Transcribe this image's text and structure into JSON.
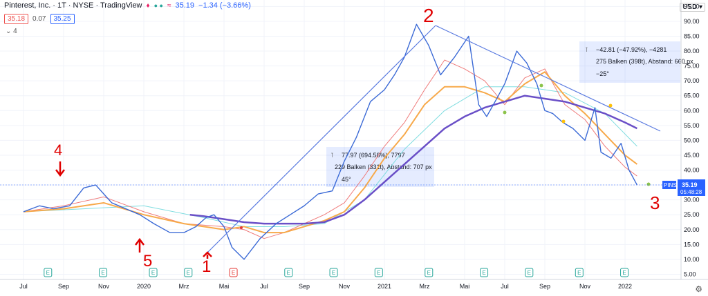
{
  "header": {
    "symbol_line": "Pinterest, Inc. · 1T · NYSE · TradingView",
    "last": "35.19",
    "change": "−1.34 (−3.66%)",
    "bid": "35.18",
    "spread": "0.07",
    "ask": "35.25",
    "indicator_count": "4",
    "currency": "USD"
  },
  "price_label": {
    "ticker": "PINS",
    "value": "35.19",
    "countdown": "05:48:28"
  },
  "measure1": {
    "line1": "77.97 (694.58%), 7797",
    "line2": "229 Balken (331t), Abstand: 707 px",
    "angle": "45°"
  },
  "measure2": {
    "line1": "−42.81 (−47.92%), −4281",
    "line2": "275 Balken (398t), Abstand: 660 px",
    "angle": "−25°"
  },
  "annotations": [
    "4",
    "5",
    "1",
    "2",
    "3"
  ],
  "chart_data": {
    "type": "line",
    "x_ticks": [
      "Jul",
      "Sep",
      "Nov",
      "2020",
      "Mrz",
      "Mai",
      "Jul",
      "Sep",
      "Nov",
      "2021",
      "Mrz",
      "Mai",
      "Jul",
      "Sep",
      "Nov",
      "2022"
    ],
    "y_ticks": [
      5,
      10,
      15,
      20,
      25,
      30,
      35,
      40,
      45,
      50,
      55,
      60,
      65,
      70,
      75,
      80,
      85,
      90,
      95
    ],
    "ylim": [
      3,
      97
    ],
    "xlim": [
      0,
      31
    ],
    "price_x": [
      0,
      0.8,
      1.5,
      2.3,
      3,
      3.6,
      4,
      4.4,
      5.1,
      5.8,
      6.5,
      7.3,
      8,
      8.6,
      9.1,
      9.5,
      10,
      10.4,
      11,
      11.8,
      12.6,
      13.3,
      14,
      14.7,
      15.4,
      16,
      16.6,
      17.3,
      18,
      18.5,
      19,
      19.6,
      20.2,
      20.8,
      21.5,
      22.2,
      22.7,
      23.1,
      23.6,
      24,
      24.6,
      25.1,
      25.6,
      26,
      26.4,
      26.9,
      27.4,
      28,
      28.5,
      28.8,
      29.3,
      29.8,
      30.2,
      30.6
    ],
    "price_y": [
      26,
      28,
      27,
      28,
      34,
      35,
      32,
      29,
      27,
      25,
      22,
      19,
      19,
      21,
      24,
      25,
      21,
      14,
      10,
      17,
      22,
      25,
      28,
      32,
      33,
      43,
      51,
      63,
      67,
      72,
      78,
      89,
      82,
      72,
      78,
      85,
      62,
      58,
      64,
      69,
      80,
      76,
      69,
      60,
      59,
      56,
      54,
      50,
      61,
      46,
      44,
      49,
      40,
      35
    ],
    "ma_slow_x": [
      8.3,
      9,
      10,
      11,
      12,
      13,
      14,
      15,
      16,
      17,
      18,
      19,
      20,
      21,
      22,
      23,
      24,
      25,
      26,
      27,
      28,
      29,
      30,
      30.6
    ],
    "ma_slow_y": [
      25,
      24.5,
      23.5,
      22.5,
      22,
      22,
      22,
      22.5,
      25,
      30,
      36,
      42,
      48,
      54,
      58,
      61,
      63,
      65,
      64,
      63,
      61,
      59,
      56,
      54
    ],
    "ma_mid_x": [
      0,
      2,
      4,
      6,
      8,
      10,
      11,
      12,
      13,
      14,
      15,
      16,
      17,
      18,
      19,
      20,
      21,
      22,
      23,
      24,
      25,
      26,
      27,
      28,
      29,
      30,
      30.6
    ],
    "ma_mid_y": [
      26,
      27,
      29,
      25,
      22,
      20,
      21,
      19,
      19,
      21,
      23,
      26,
      34,
      44,
      52,
      62,
      68,
      68,
      66,
      63,
      69,
      73,
      65,
      59,
      52,
      45,
      42
    ],
    "ma_fast_x": [
      0,
      2,
      4,
      6,
      8,
      10,
      11,
      12,
      13,
      14,
      15,
      16,
      17,
      18,
      19,
      20,
      21,
      22,
      23,
      24,
      25,
      26,
      27,
      28,
      29,
      30,
      30.6
    ],
    "ma_fast_y": [
      26,
      28,
      31,
      26,
      22,
      21,
      20,
      17,
      19,
      22,
      25,
      29,
      38,
      48,
      56,
      67,
      77,
      74,
      70,
      62,
      71,
      74,
      62,
      57,
      48,
      41,
      38
    ],
    "ma_teal_x": [
      0,
      3,
      6,
      9,
      11,
      13,
      15,
      17,
      19,
      21,
      23,
      25,
      27,
      29,
      30.6
    ],
    "ma_teal_y": [
      26,
      27,
      28,
      24,
      21,
      21,
      22,
      30,
      47,
      60,
      68,
      68,
      66,
      59,
      48
    ]
  }
}
